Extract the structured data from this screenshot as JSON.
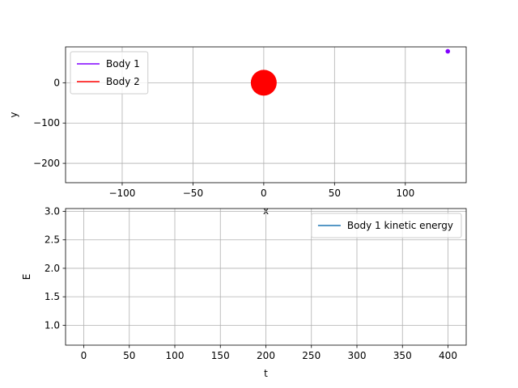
{
  "chart_data": [
    {
      "type": "scatter",
      "xlabel": "x",
      "ylabel": "y",
      "xlim": [
        -140,
        143
      ],
      "ylim": [
        -248,
        89
      ],
      "x_ticks": [
        -100,
        -50,
        0,
        50,
        100
      ],
      "y_ticks": [
        0,
        -100,
        -200
      ],
      "grid": true,
      "legend_placement": "upper-left",
      "series": [
        {
          "name": "Body 1",
          "color": "#8000ff",
          "marker_size": "small",
          "points": [
            {
              "x": 130,
              "y": 78
            }
          ]
        },
        {
          "name": "Body 2",
          "color": "#ff0000",
          "marker_size": "large",
          "points": [
            {
              "x": 0,
              "y": 0
            }
          ]
        }
      ]
    },
    {
      "type": "line",
      "xlabel": "t",
      "ylabel": "E",
      "xlim": [
        -20,
        420
      ],
      "ylim": [
        0.65,
        3.05
      ],
      "x_ticks": [
        0,
        50,
        100,
        150,
        200,
        250,
        300,
        350,
        400
      ],
      "y_ticks": [
        1.0,
        1.5,
        2.0,
        2.5,
        3.0
      ],
      "grid": true,
      "legend_placement": "upper-right",
      "series": [
        {
          "name": "Body 1 kinetic energy",
          "color": "#1f77b4",
          "points": []
        }
      ]
    }
  ]
}
